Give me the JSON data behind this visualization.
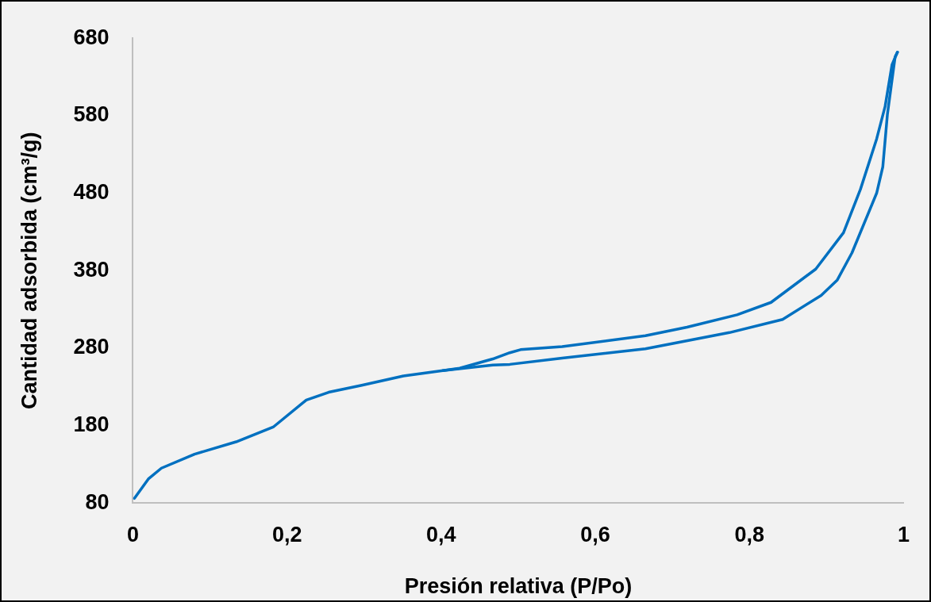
{
  "chart_data": {
    "type": "line",
    "xlabel": "Presión relativa (P/Po)",
    "ylabel": "Cantidad adsorbida (cm³/g)",
    "xlim": [
      0,
      1
    ],
    "ylim": [
      80,
      680
    ],
    "xticks": [
      0,
      {
        "value": 0.2,
        "label": "0,2"
      },
      {
        "value": 0.4,
        "label": "0,4"
      },
      {
        "value": 0.6,
        "label": "0,6"
      },
      {
        "value": 0.8,
        "label": "0,8"
      },
      1
    ],
    "yticks": [
      80,
      180,
      280,
      380,
      480,
      580,
      680
    ],
    "grid": false,
    "legend": false,
    "marker": "none",
    "line_style": "solid",
    "series": [
      {
        "color": "#0070c0",
        "x": [
          0.002,
          0.02,
          0.037,
          0.08,
          0.134,
          0.182,
          0.225,
          0.254,
          0.297,
          0.351,
          0.402,
          0.467,
          0.489,
          0.557,
          0.665,
          0.774,
          0.843,
          0.893,
          0.914,
          0.933,
          0.965,
          0.973,
          0.979,
          0.989,
          0.992
        ],
        "values": [
          86,
          111,
          125,
          143,
          159,
          178,
          213,
          223,
          232,
          244,
          251,
          258,
          259,
          267,
          279,
          300,
          317,
          348,
          368,
          403,
          480,
          514,
          582,
          656,
          662
        ]
      },
      {
        "color": "#0070c0",
        "x": [
          0.992,
          0.985,
          0.976,
          0.965,
          0.944,
          0.922,
          0.886,
          0.828,
          0.784,
          0.719,
          0.665,
          0.557,
          0.503,
          0.489,
          0.467,
          0.424,
          0.402
        ],
        "values": [
          662,
          646,
          592,
          550,
          485,
          429,
          382,
          339,
          323,
          307,
          296,
          282,
          278,
          274,
          266,
          254,
          251
        ]
      }
    ]
  }
}
